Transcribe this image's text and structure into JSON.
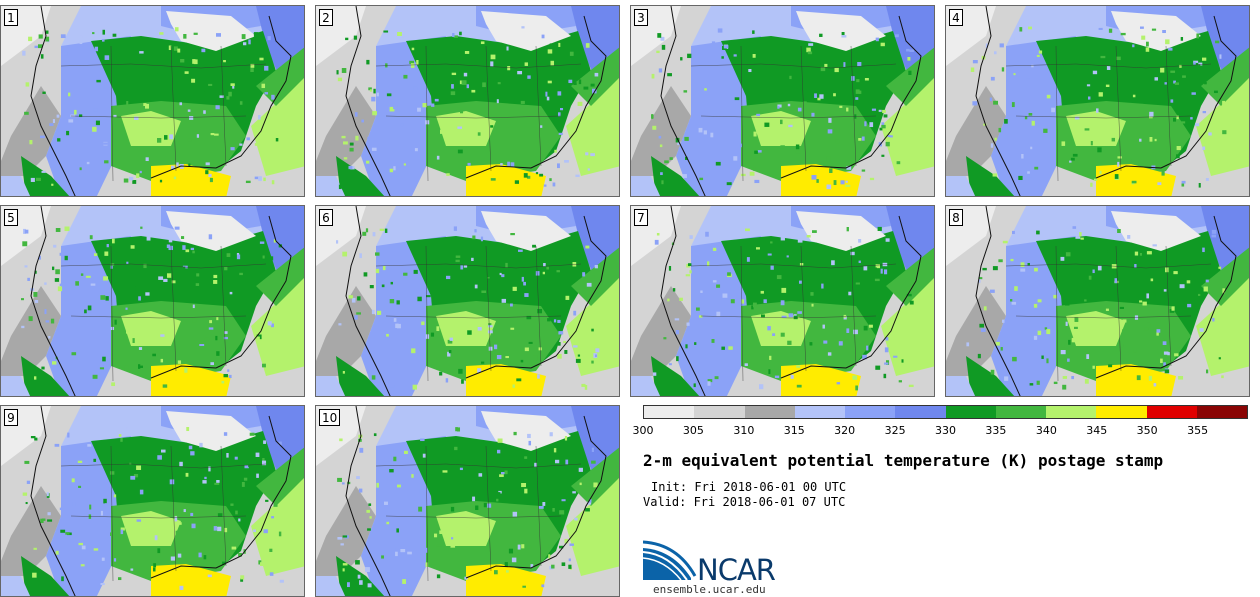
{
  "chart_data": {
    "type": "heatmap",
    "title": "2-m equivalent potential temperature (K) postage stamp",
    "init": "Init: Fri 2018-06-01 00 UTC",
    "valid": "Valid: Fri 2018-06-01 07 UTC",
    "panels": [
      "1",
      "2",
      "3",
      "4",
      "5",
      "6",
      "7",
      "8",
      "9",
      "10"
    ],
    "colorbar": {
      "levels": [
        300,
        305,
        310,
        315,
        320,
        325,
        330,
        335,
        340,
        345,
        350,
        355,
        360
      ],
      "tick_labels": [
        "300",
        "305",
        "310",
        "315",
        "320",
        "325",
        "330",
        "335",
        "340",
        "345",
        "350",
        "355"
      ],
      "colors": [
        "#ededed",
        "#d4d4d4",
        "#a8a8a8",
        "#b3c3f8",
        "#8ba2f7",
        "#6f87ee",
        "#109a24",
        "#42b73f",
        "#b4f26c",
        "#ffec00",
        "#e00000",
        "#8a0505"
      ]
    }
  },
  "branding": {
    "logo_text": "NCAR",
    "url": "ensemble.ucar.edu"
  }
}
